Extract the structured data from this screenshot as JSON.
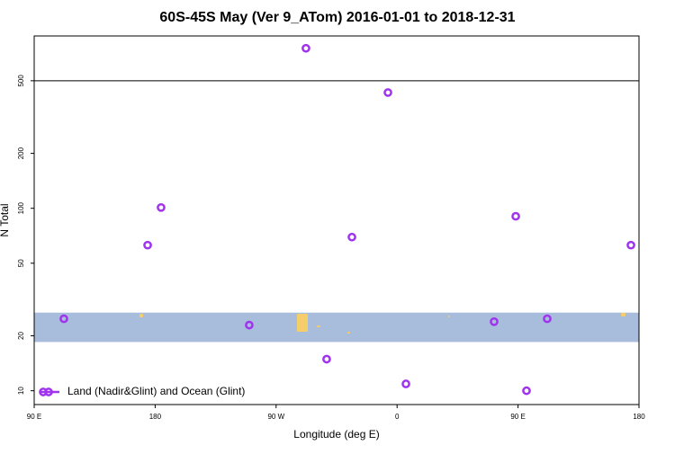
{
  "chart_data": {
    "type": "scatter",
    "title": "60S-45S May (Ver 9_ATom)   2016-01-01 to 2018-12-31",
    "x_label": "Longitude (deg E)",
    "y_label": "N Total",
    "log_y": true,
    "xlim": [
      90,
      540
    ],
    "ylim": [
      8.4,
      880
    ],
    "xticks": [
      {
        "value": 90,
        "label": "90 E"
      },
      180,
      {
        "value": 270,
        "label": "90 W"
      },
      {
        "value": 360,
        "label": "0"
      },
      {
        "value": 450,
        "label": "90 E"
      },
      {
        "value": 540,
        "label": "180"
      }
    ],
    "yticks": [
      10,
      20,
      50,
      100,
      200,
      500
    ],
    "reference_line": 500,
    "band": [
      18.5,
      26.8
    ],
    "band_color": "#a8bcdc",
    "legend_position": "bottom-left",
    "series": [
      {
        "name": "Land (Nadir&Glint) and Ocean (Glint)",
        "color": "#a033ee",
        "x": [
          112.1,
          174.4,
          184.4,
          250.0,
          292.2,
          307.6,
          326.4,
          353.2,
          366.6,
          432.2,
          448.3,
          456.3,
          471.7,
          534.0
        ],
        "values": [
          24.8,
          62.8,
          101,
          22.9,
          753,
          14.9,
          69.5,
          431,
          10.9,
          23.9,
          90.4,
          10,
          24.8,
          62.8
        ]
      }
    ]
  }
}
